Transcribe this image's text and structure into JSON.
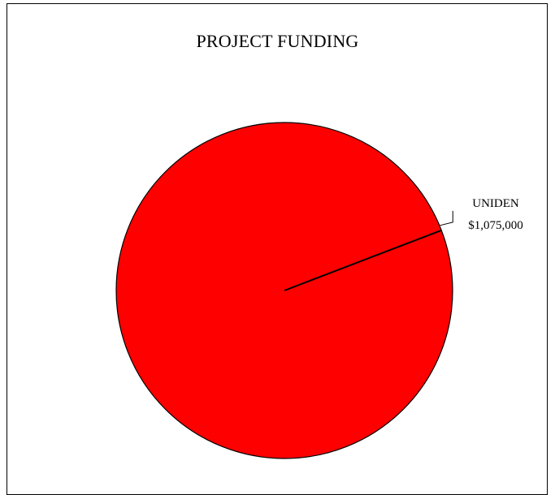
{
  "chart_data": {
    "type": "pie",
    "title": "PROJECT FUNDING",
    "slices": [
      {
        "label": "UNIDEN",
        "value": 1075000,
        "value_label": "$1,075,000",
        "color": "#ff0000"
      }
    ],
    "legend": "none",
    "data_labels": "outside-right-with-leader-line"
  }
}
